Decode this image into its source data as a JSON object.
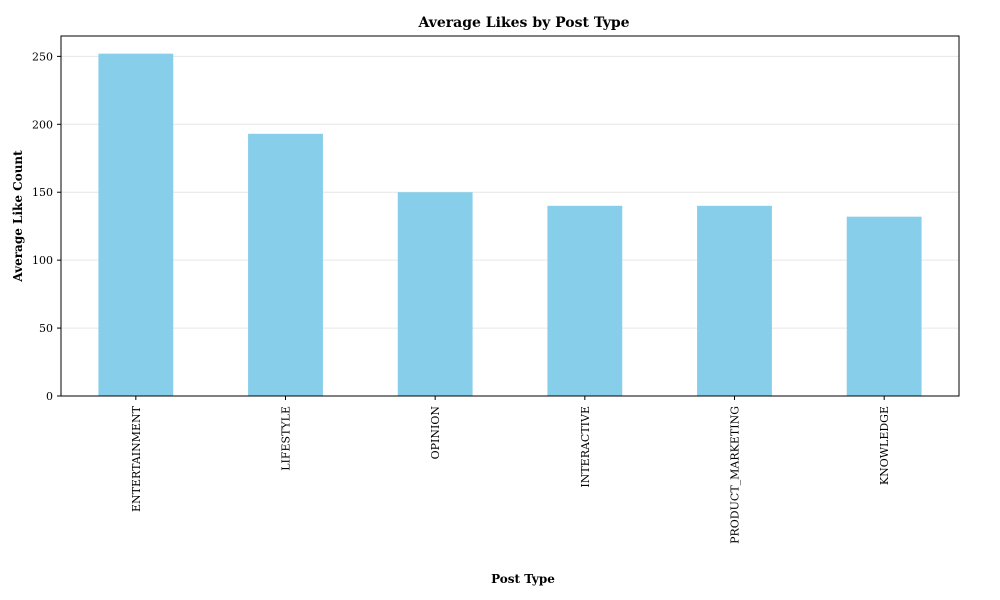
{
  "chart_data": {
    "type": "bar",
    "title": "Average Likes by Post Type",
    "xlabel": "Post Type",
    "ylabel": "Average Like Count",
    "categories": [
      "ENTERTAINMENT",
      "LIFESTYLE",
      "OPINION",
      "INTERACTIVE",
      "PRODUCT_MARKETING",
      "KNOWLEDGE"
    ],
    "values": [
      252,
      193,
      150,
      140,
      140,
      132
    ],
    "ylim": [
      0,
      265
    ],
    "yticks": [
      0,
      50,
      100,
      150,
      200,
      250
    ],
    "grid": "horizontal",
    "legend": "none",
    "bar_color": "#87ceeb"
  }
}
